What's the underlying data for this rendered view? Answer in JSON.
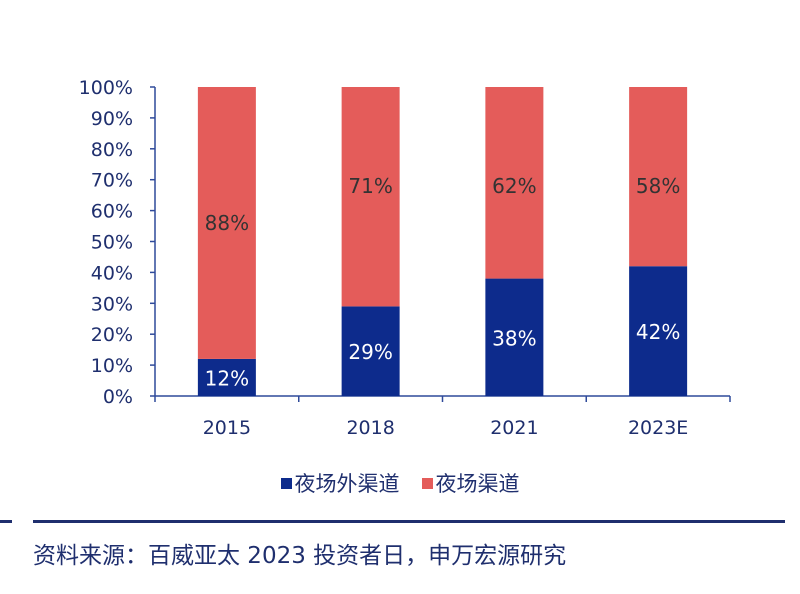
{
  "chart_data": {
    "type": "bar",
    "stacked": true,
    "categories": [
      "2015",
      "2018",
      "2021",
      "2023E"
    ],
    "series": [
      {
        "name": "夜场外渠道",
        "values": [
          12,
          29,
          38,
          42
        ],
        "labels": [
          "12%",
          "29%",
          "38%",
          "42%"
        ],
        "color": "#0d2b8c",
        "label_color": "#ffffff"
      },
      {
        "name": "夜场渠道",
        "values": [
          88,
          71,
          62,
          58
        ],
        "labels": [
          "88%",
          "71%",
          "62%",
          "58%"
        ],
        "color": "#e45c5a",
        "label_color": "#333333"
      }
    ],
    "yticks": [
      "0%",
      "10%",
      "20%",
      "30%",
      "40%",
      "50%",
      "60%",
      "70%",
      "80%",
      "90%",
      "100%"
    ],
    "ylim": [
      0,
      100
    ],
    "grid": false,
    "legend": "bottom",
    "axis_color": "#2f4a9a"
  },
  "legend": {
    "items": [
      "夜场外渠道",
      "夜场渠道"
    ]
  },
  "source": "资料来源：百威亚太 2023 投资者日，申万宏源研究",
  "separator_color": "#1f2f6e"
}
